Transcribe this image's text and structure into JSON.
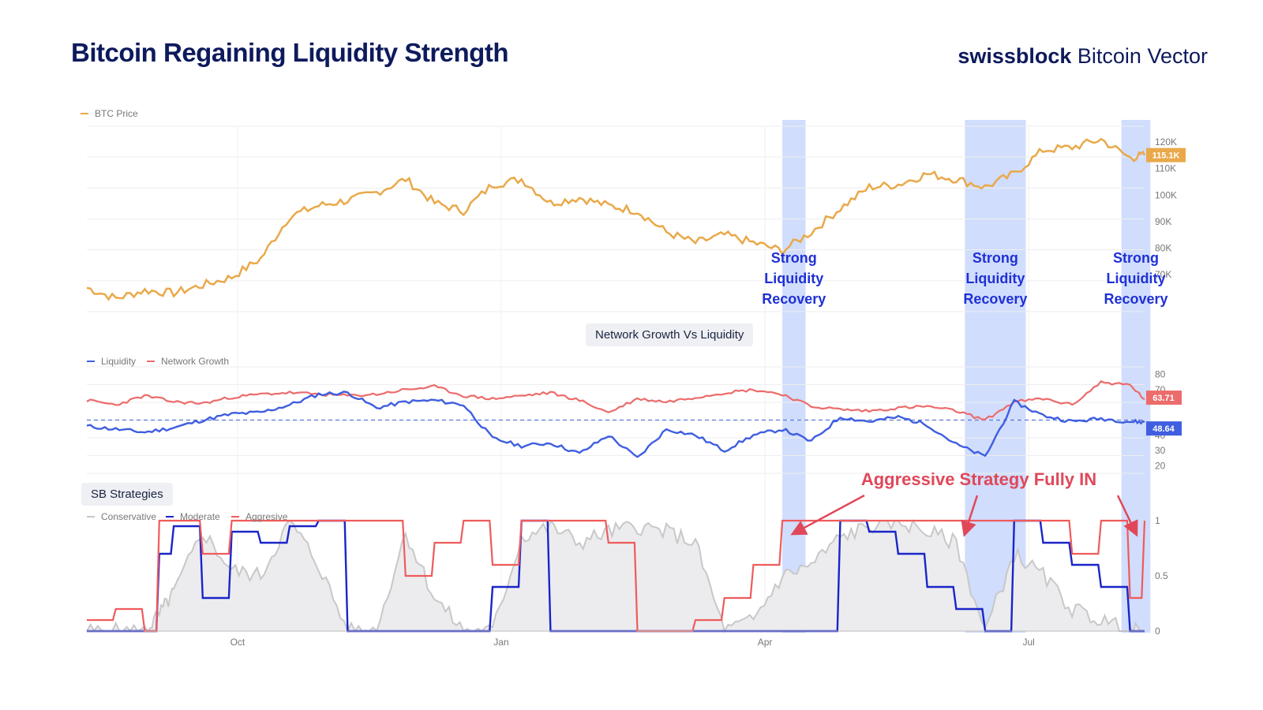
{
  "header": {
    "title": "Bitcoin Regaining Liquidity Strength",
    "brand_bold": "swissblock",
    "brand_rest": "Bitcoin Vector"
  },
  "colors": {
    "btc": "#e9a94a",
    "liquidity": "#3f5ee0",
    "network": "#ec6c6c",
    "conservative": "#c8c8c8",
    "moderate": "#1a25c8",
    "aggressive": "#ef5b5b",
    "highlight": "#c4d4fb",
    "annotation_blue": "#1f30d6",
    "annotation_red": "#e0485a",
    "title": "#0d1a5c"
  },
  "subcharts": {
    "network_title": "Network Growth Vs Liquidity",
    "strategies_title": "SB Strategies"
  },
  "annotations": {
    "recovery": [
      "Strong",
      "Liquidity",
      "Recovery"
    ],
    "aggressive": "Aggressive Strategy Fully IN"
  },
  "chart_data": [
    {
      "type": "line",
      "title": "BTC Price",
      "x_ticks": [
        "Oct",
        "Jan",
        "Apr",
        "Jul"
      ],
      "x": [
        0,
        10,
        20,
        30,
        40,
        50,
        60,
        70,
        80,
        90,
        100,
        110,
        120,
        130,
        140,
        150,
        160,
        170,
        180,
        190,
        200,
        210,
        220,
        230,
        240,
        250,
        260,
        270,
        280,
        290,
        300,
        310,
        320,
        330,
        340,
        350,
        360,
        365
      ],
      "series": [
        {
          "name": "BTC Price",
          "values": [
            65,
            61,
            64,
            63,
            66,
            69,
            76,
            92,
            96,
            98,
            101,
            106,
            97,
            94,
            104,
            106,
            97,
            99,
            96,
            94,
            86,
            82,
            85,
            82,
            79,
            86,
            95,
            103,
            104,
            108,
            106,
            103,
            108,
            117,
            118,
            121,
            114,
            115.1
          ]
        }
      ],
      "y_ticks": [
        70,
        80,
        90,
        100,
        110,
        120
      ],
      "y_tick_labels": [
        "70K",
        "80K",
        "90K",
        "100K",
        "110K",
        "120K"
      ],
      "ylim": [
        56,
        126
      ],
      "last_value_label": "115.1K",
      "legend": "top-left"
    },
    {
      "type": "line",
      "title": "Network Growth Vs Liquidity",
      "x": [
        0,
        10,
        20,
        30,
        40,
        50,
        60,
        70,
        80,
        90,
        100,
        110,
        120,
        130,
        140,
        150,
        160,
        170,
        180,
        190,
        200,
        210,
        220,
        230,
        240,
        250,
        260,
        270,
        280,
        290,
        300,
        310,
        320,
        330,
        340,
        350,
        360,
        365
      ],
      "series": [
        {
          "name": "Liquidity",
          "values": [
            46,
            44,
            42,
            45,
            50,
            54,
            55,
            60,
            67,
            68,
            58,
            62,
            63,
            60,
            38,
            33,
            35,
            28,
            40,
            25,
            44,
            40,
            30,
            40,
            44,
            36,
            52,
            49,
            52,
            47,
            34,
            26,
            62,
            53,
            49,
            51,
            49,
            48.64
          ]
        },
        {
          "name": "Network Growth",
          "values": [
            63,
            60,
            66,
            62,
            61,
            65,
            67,
            68,
            67,
            66,
            67,
            70,
            72,
            66,
            64,
            66,
            68,
            63,
            55,
            64,
            62,
            65,
            68,
            70,
            67,
            59,
            57,
            56,
            58,
            59,
            56,
            50,
            62,
            64,
            60,
            75,
            73,
            63.71
          ]
        }
      ],
      "y_ticks": [
        20,
        30,
        40,
        70,
        80
      ],
      "reference_line": 50,
      "last_value_labels": [
        "63.71",
        "48.64"
      ],
      "legend": "top-left"
    },
    {
      "type": "area",
      "title": "SB Strategies",
      "x": [
        0,
        10,
        20,
        25,
        30,
        40,
        50,
        60,
        70,
        80,
        90,
        100,
        110,
        120,
        130,
        140,
        150,
        160,
        170,
        180,
        190,
        200,
        210,
        220,
        230,
        240,
        250,
        260,
        270,
        280,
        290,
        300,
        310,
        320,
        330,
        340,
        350,
        360,
        365
      ],
      "series": [
        {
          "name": "Conservative",
          "values": [
            0,
            0,
            0,
            0.15,
            0.35,
            0.9,
            0.55,
            0.5,
            1,
            0.6,
            0,
            0,
            0.9,
            0.3,
            0,
            0,
            0.85,
            0.95,
            0.8,
            0.9,
            0.95,
            0.9,
            0.8,
            0,
            0.1,
            0.5,
            0.6,
            0.85,
            0.95,
            1,
            0.9,
            0.8,
            0,
            0.7,
            0.5,
            0.2,
            0.1,
            0,
            0
          ]
        },
        {
          "name": "Moderate",
          "values": [
            0,
            0,
            0,
            0.7,
            0.95,
            0.3,
            0.9,
            0.8,
            0.95,
            1,
            0,
            0,
            0,
            0,
            0,
            0.4,
            1,
            0,
            0,
            0,
            0,
            0,
            0,
            0,
            0,
            0,
            0,
            1,
            0.9,
            0.7,
            0.4,
            0.2,
            0,
            1,
            0.8,
            0.6,
            0.4,
            0,
            0
          ]
        },
        {
          "name": "Aggresive",
          "values": [
            0.1,
            0.2,
            0,
            1,
            1,
            0.7,
            1,
            1,
            1,
            1,
            1,
            1,
            0.5,
            0.8,
            1,
            0.6,
            1,
            1,
            1,
            0.8,
            0,
            0,
            0.1,
            0.3,
            0.6,
            1,
            1,
            1,
            1,
            1,
            1,
            1,
            1,
            1,
            1,
            0.7,
            1,
            0.3,
            1
          ]
        }
      ],
      "y_ticks": [
        0,
        0.5,
        1
      ],
      "ylim": [
        0,
        1
      ],
      "legend": "top-left"
    }
  ],
  "highlight_regions": [
    [
      240,
      248
    ],
    [
      303,
      324
    ],
    [
      357,
      367
    ]
  ]
}
